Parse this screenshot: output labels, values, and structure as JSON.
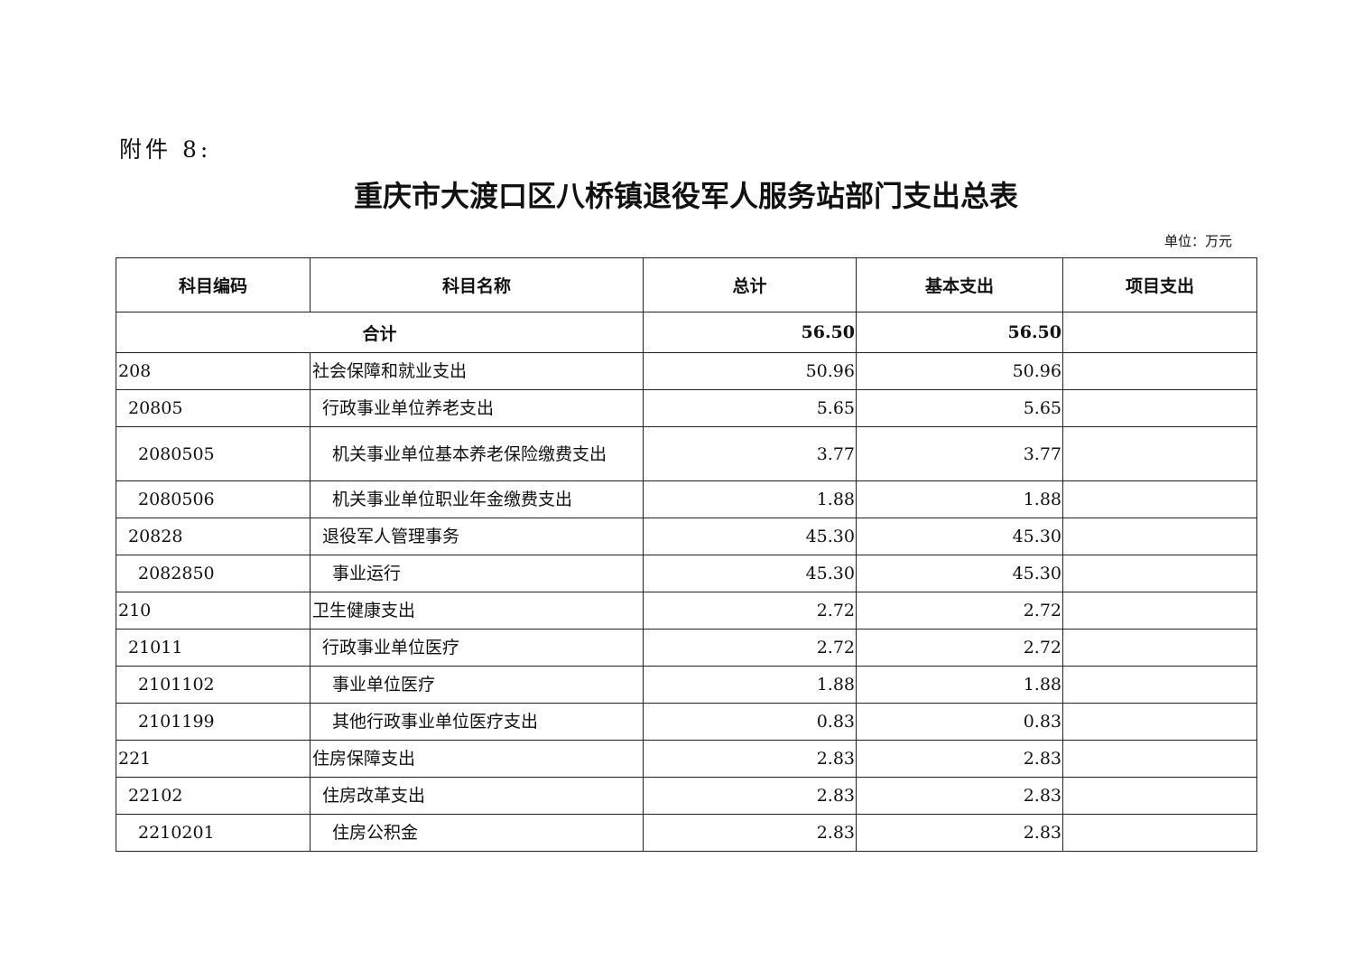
{
  "attachment_label": "附件 8:",
  "title": "重庆市大渡口区八桥镇退役军人服务站部门支出总表",
  "unit": "单位：万元",
  "table": {
    "headers": [
      "科目编码",
      "科目名称",
      "总计",
      "基本支出",
      "项目支出"
    ],
    "total": {
      "label": "合计",
      "total": "56.50",
      "basic": "56.50",
      "project": ""
    },
    "rows": [
      {
        "code": "208",
        "name": "社会保障和就业支出",
        "total": "50.96",
        "basic": "50.96",
        "project": "",
        "level": 1
      },
      {
        "code": "20805",
        "name": "行政事业单位养老支出",
        "total": "5.65",
        "basic": "5.65",
        "project": "",
        "level": 2
      },
      {
        "code": "2080505",
        "name": "机关事业单位基本养老保险缴费支出",
        "total": "3.77",
        "basic": "3.77",
        "project": "",
        "level": 3
      },
      {
        "code": "2080506",
        "name": "机关事业单位职业年金缴费支出",
        "total": "1.88",
        "basic": "1.88",
        "project": "",
        "level": 3
      },
      {
        "code": "20828",
        "name": "退役军人管理事务",
        "total": "45.30",
        "basic": "45.30",
        "project": "",
        "level": 2
      },
      {
        "code": "2082850",
        "name": "事业运行",
        "total": "45.30",
        "basic": "45.30",
        "project": "",
        "level": 3
      },
      {
        "code": "210",
        "name": "卫生健康支出",
        "total": "2.72",
        "basic": "2.72",
        "project": "",
        "level": 1
      },
      {
        "code": "21011",
        "name": "行政事业单位医疗",
        "total": "2.72",
        "basic": "2.72",
        "project": "",
        "level": 2
      },
      {
        "code": "2101102",
        "name": "事业单位医疗",
        "total": "1.88",
        "basic": "1.88",
        "project": "",
        "level": 3
      },
      {
        "code": "2101199",
        "name": "其他行政事业单位医疗支出",
        "total": "0.83",
        "basic": "0.83",
        "project": "",
        "level": 3
      },
      {
        "code": "221",
        "name": "住房保障支出",
        "total": "2.83",
        "basic": "2.83",
        "project": "",
        "level": 1
      },
      {
        "code": "22102",
        "name": "住房改革支出",
        "total": "2.83",
        "basic": "2.83",
        "project": "",
        "level": 2
      },
      {
        "code": "2210201",
        "name": "住房公积金",
        "total": "2.83",
        "basic": "2.83",
        "project": "",
        "level": 3
      }
    ]
  }
}
